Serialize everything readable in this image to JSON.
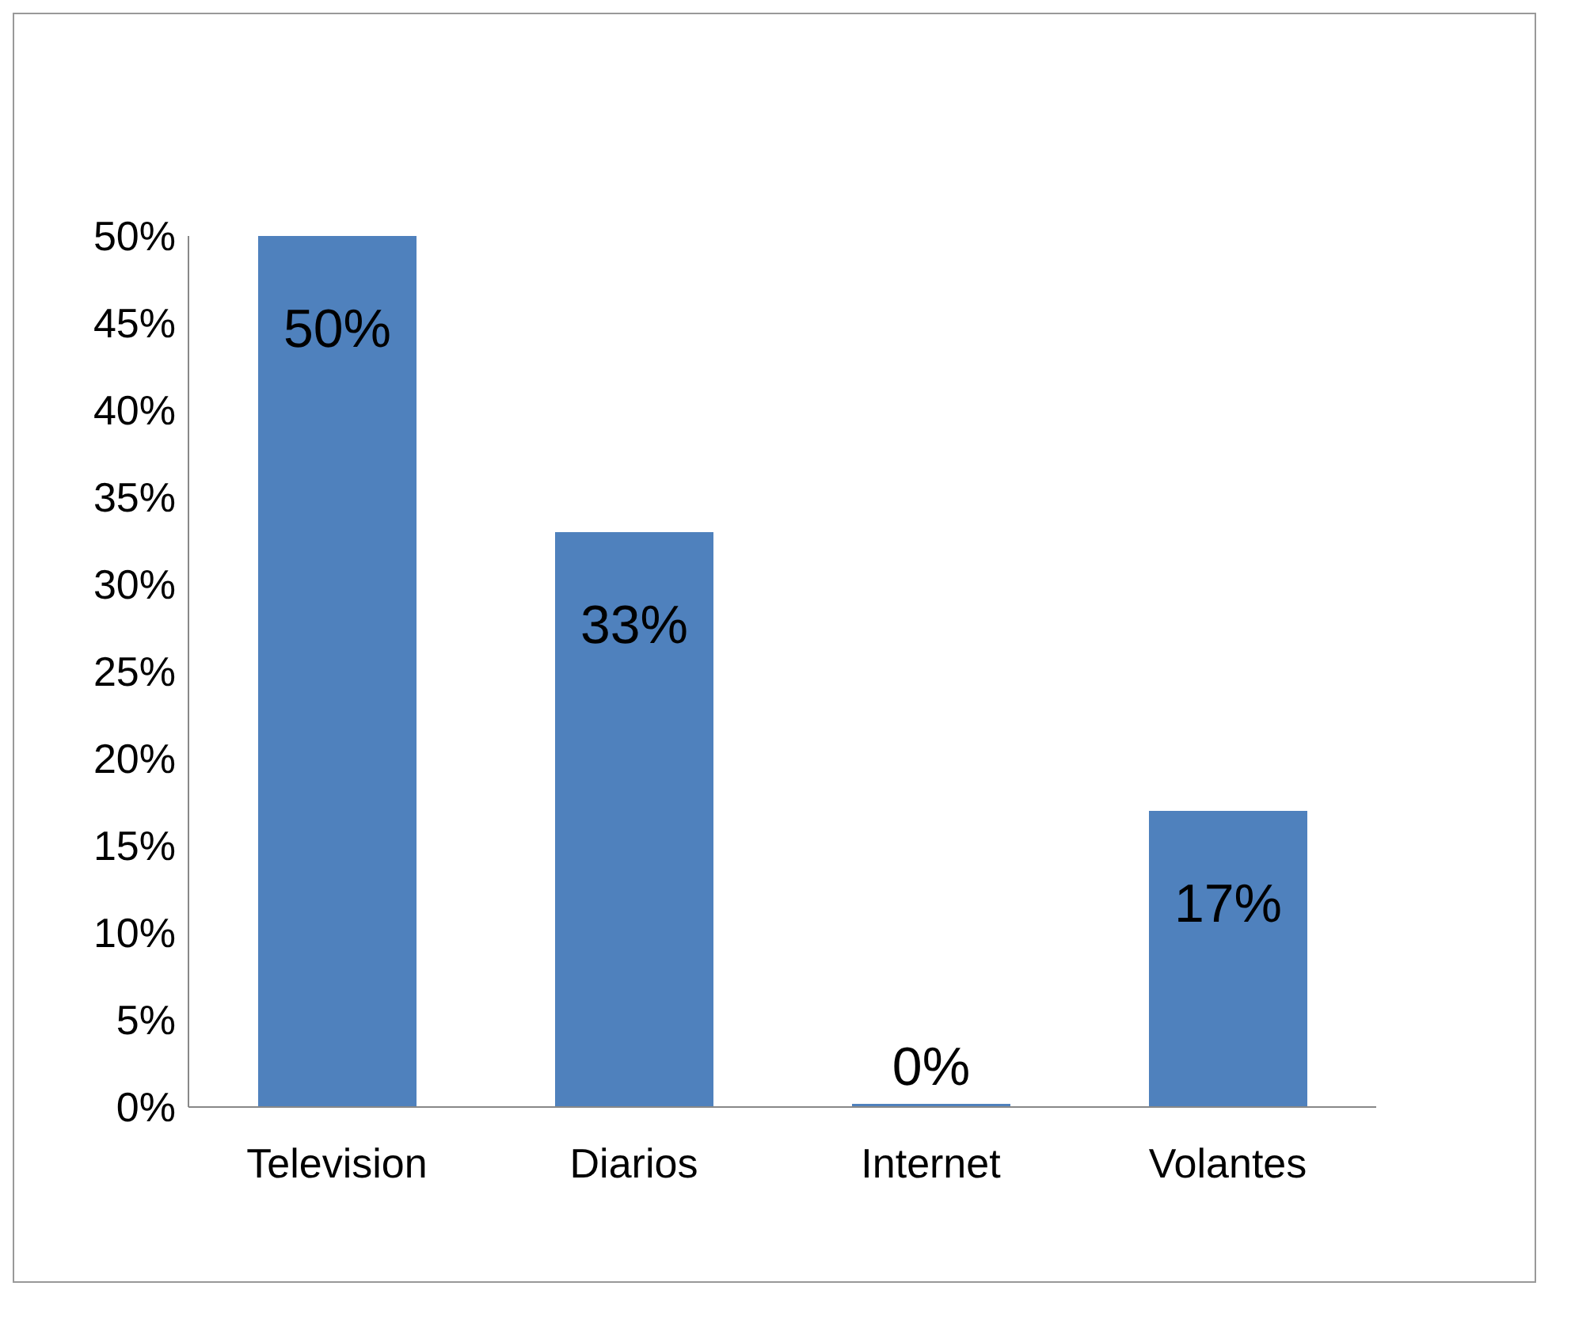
{
  "chart_data": {
    "type": "bar",
    "categories": [
      "Television",
      "Diarios",
      "Internet",
      "Volantes"
    ],
    "values": [
      50,
      33,
      0,
      17
    ],
    "value_labels": [
      "50%",
      "33%",
      "0%",
      "17%"
    ],
    "color": "#4f81bd",
    "ylim": [
      0,
      50
    ],
    "yticks": [
      {
        "value": 0,
        "label": "0%"
      },
      {
        "value": 5,
        "label": "5%"
      },
      {
        "value": 10,
        "label": "10%"
      },
      {
        "value": 15,
        "label": "15%"
      },
      {
        "value": 20,
        "label": "20%"
      },
      {
        "value": 25,
        "label": "25%"
      },
      {
        "value": 30,
        "label": "30%"
      },
      {
        "value": 35,
        "label": "35%"
      },
      {
        "value": 40,
        "label": "40%"
      },
      {
        "value": 45,
        "label": "45%"
      },
      {
        "value": 50,
        "label": "50%"
      }
    ],
    "grid": false
  }
}
